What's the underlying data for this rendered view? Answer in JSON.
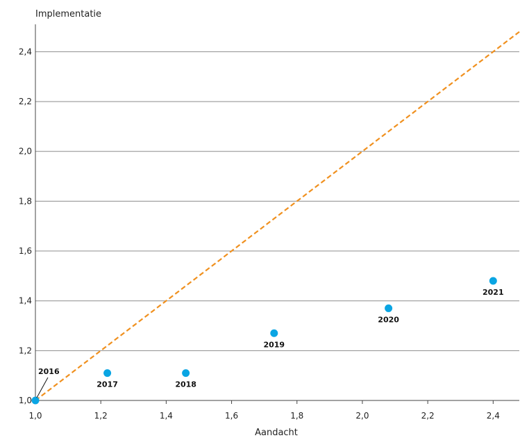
{
  "chart_data": {
    "type": "scatter",
    "xlabel": "Aandacht",
    "ylabel": "Implementatie",
    "xlim": [
      1.0,
      2.48
    ],
    "ylim": [
      1.0,
      2.51
    ],
    "xticks": [
      1.0,
      1.2,
      1.4,
      1.6,
      1.8,
      2.0,
      2.2,
      2.4
    ],
    "xtick_labels": [
      "1,0",
      "1,2",
      "1,4",
      "1,6",
      "1,8",
      "2,0",
      "2,2",
      "2,4"
    ],
    "yticks": [
      1.0,
      1.2,
      1.4,
      1.6,
      1.8,
      2.0,
      2.2,
      2.4
    ],
    "ytick_labels": [
      "1,0",
      "1,2",
      "1,4",
      "1,6",
      "1,8",
      "2,0",
      "2,2",
      "2,4"
    ],
    "grid": "horizontal",
    "points": [
      {
        "label": "2016",
        "x": 1.0,
        "y": 1.0
      },
      {
        "label": "2017",
        "x": 1.22,
        "y": 1.11
      },
      {
        "label": "2018",
        "x": 1.46,
        "y": 1.11
      },
      {
        "label": "2019",
        "x": 1.73,
        "y": 1.27
      },
      {
        "label": "2020",
        "x": 2.08,
        "y": 1.37
      },
      {
        "label": "2021",
        "x": 2.4,
        "y": 1.48
      }
    ],
    "reference_line": {
      "style": "dashed",
      "x": [
        1.0,
        2.48
      ],
      "y": [
        1.0,
        2.48
      ]
    },
    "colors": {
      "points": "#0aa5e3",
      "reference_line": "#f0901e",
      "grid": "#8c8c8c",
      "axis": "#444444"
    }
  }
}
